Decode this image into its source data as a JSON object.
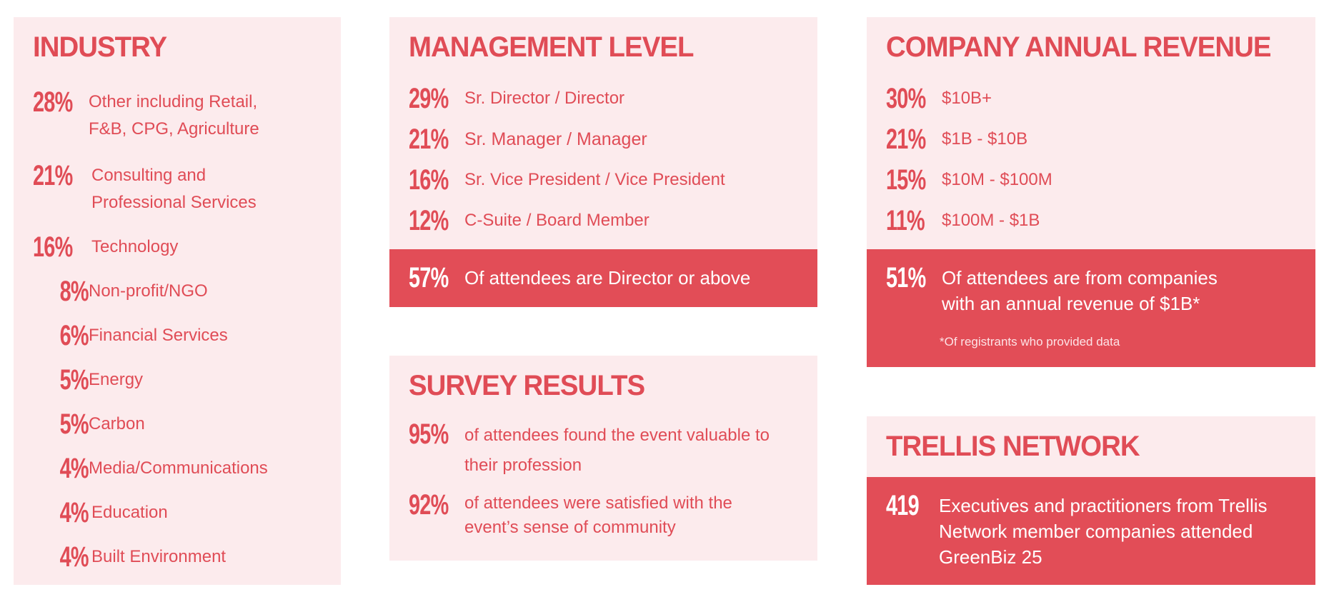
{
  "industry": {
    "title": "INDUSTRY",
    "items": [
      {
        "pct": "28%",
        "label": "Other including Retail, F&B, CPG, Agriculture"
      },
      {
        "pct": "21%",
        "label": "Consulting and Professional Services"
      },
      {
        "pct": "16%",
        "label": "Technology"
      },
      {
        "pct": "8%",
        "label": "Non-profit/NGO"
      },
      {
        "pct": "6%",
        "label": "Financial Services"
      },
      {
        "pct": "5%",
        "label": "Energy"
      },
      {
        "pct": "5%",
        "label": "Carbon"
      },
      {
        "pct": "4%",
        "label": "Media/Communications"
      },
      {
        "pct": "4%",
        "label": "Education"
      },
      {
        "pct": "4%",
        "label": "Built Environment"
      }
    ]
  },
  "management": {
    "title": "MANAGEMENT LEVEL",
    "items": [
      {
        "pct": "29%",
        "label": "Sr. Director / Director"
      },
      {
        "pct": "21%",
        "label": "Sr. Manager / Manager"
      },
      {
        "pct": "16%",
        "label": "Sr. Vice President / Vice President"
      },
      {
        "pct": "12%",
        "label": "C-Suite / Board Member"
      }
    ],
    "highlight": {
      "pct": "57%",
      "label": "Of attendees are Director or above"
    }
  },
  "survey": {
    "title": "SURVEY RESULTS",
    "items": [
      {
        "pct": "95%",
        "label": "of attendees found the event valuable to their profession"
      },
      {
        "pct": "92%",
        "label": "of attendees were satisfied with the event’s sense of community"
      }
    ]
  },
  "revenue": {
    "title": "COMPANY ANNUAL REVENUE",
    "items": [
      {
        "pct": "30%",
        "label": "$10B+"
      },
      {
        "pct": "21%",
        "label": "$1B - $10B"
      },
      {
        "pct": "15%",
        "label": "$10M - $100M"
      },
      {
        "pct": "11%",
        "label": "$100M - $1B"
      }
    ],
    "highlight": {
      "pct": "51%",
      "label": "Of attendees are from companies with an annual revenue of $1B*"
    },
    "footnote": "*Of registrants who provided data"
  },
  "trellis": {
    "title": "TRELLIS NETWORK",
    "highlight": {
      "value": "419",
      "label": "Executives and practitioners from Trellis Network member companies attended GreenBiz 25"
    }
  },
  "colors": {
    "accent": "#e24d57",
    "card_bg": "#fcebed",
    "text": "#e04c56"
  }
}
